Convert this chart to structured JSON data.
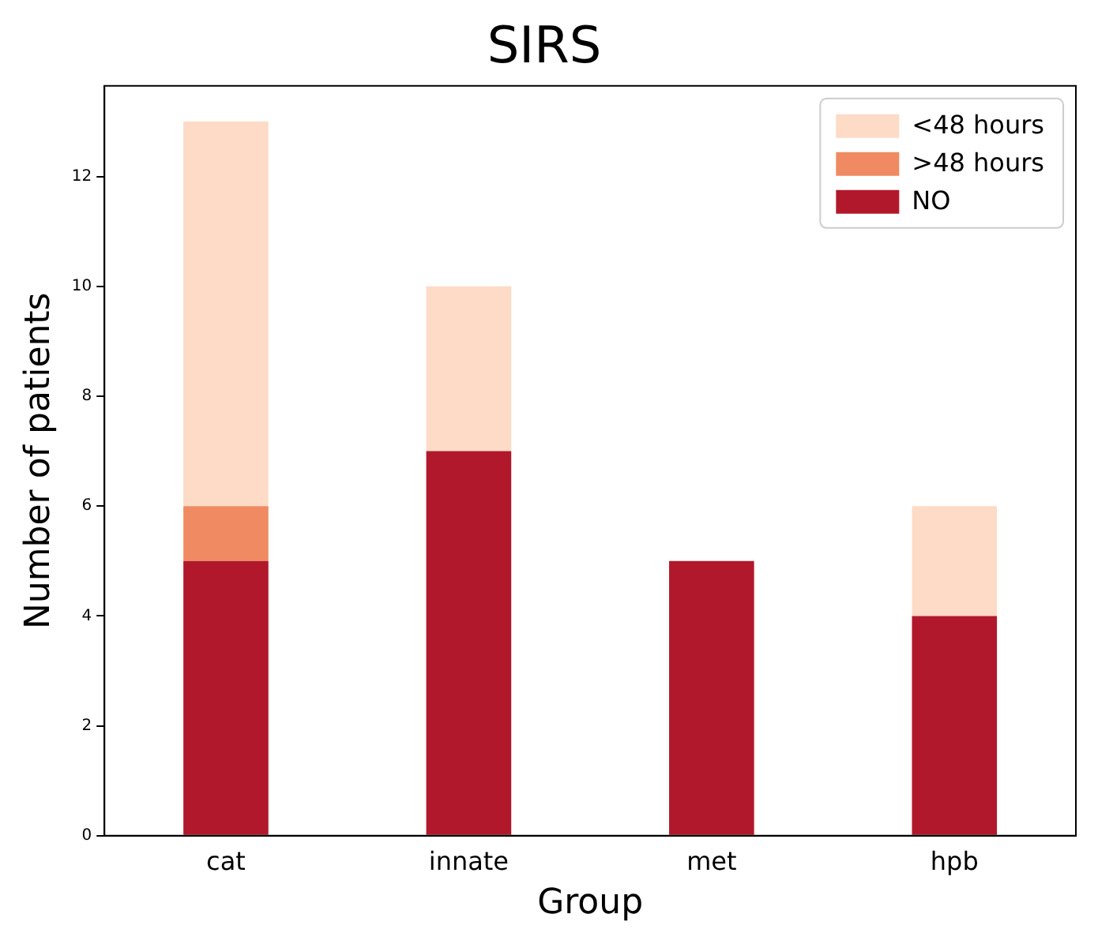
{
  "chart_data": {
    "type": "bar",
    "title": "SIRS",
    "xlabel": "Group",
    "ylabel": "Number of patients",
    "categories": [
      "cat",
      "innate",
      "met",
      "hpb"
    ],
    "stacked": true,
    "series": [
      {
        "name": "NO",
        "color": "#b2182b",
        "values": [
          5,
          7,
          5,
          4
        ]
      },
      {
        "name": ">48 hours",
        "color": "#ef8a62",
        "values": [
          1,
          0,
          0,
          0
        ]
      },
      {
        "name": "<48 hours",
        "color": "#fddbc7",
        "values": [
          7,
          3,
          0,
          2
        ]
      }
    ],
    "ylim": [
      0,
      13.65
    ],
    "yticks": [
      0,
      2,
      4,
      6,
      8,
      10,
      12
    ],
    "grid": false,
    "legend": "top right"
  }
}
